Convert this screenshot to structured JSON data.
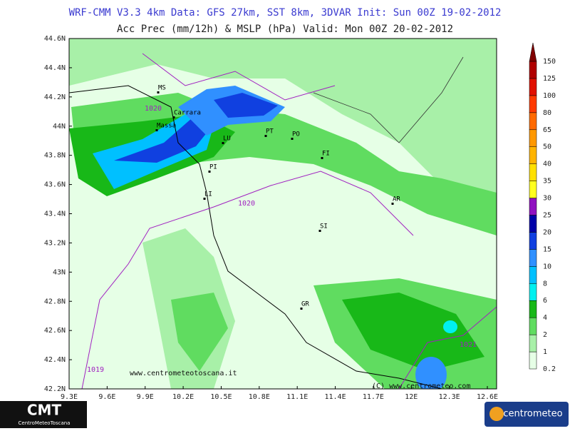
{
  "header": {
    "line1": "WRF-CMM V3.3 4km  Data: GFS 27km, SST 8km, 3DVAR  Init: Sun 00Z 19-02-2012",
    "line2": "Acc Prec (mm/12h) & MSLP (hPa)  Valid: Mon 00Z 20-02-2012"
  },
  "map": {
    "lat_ticks": [
      "44.6N",
      "44.4N",
      "44.2N",
      "44N",
      "43.8N",
      "43.6N",
      "43.4N",
      "43.2N",
      "43N",
      "42.8N",
      "42.6N",
      "42.4N",
      "42.2N"
    ],
    "lon_ticks": [
      "9.3E",
      "9.6E",
      "9.9E",
      "10.2E",
      "10.5E",
      "10.8E",
      "11.1E",
      "11.4E",
      "11.7E",
      "12E",
      "12.3E",
      "12.6E"
    ],
    "cities": [
      "MS",
      "Carrara",
      "Massa",
      "LU",
      "PI",
      "PT",
      "PO",
      "FI",
      "AR",
      "LI",
      "SI",
      "GR"
    ],
    "isobar_labels": [
      "1020",
      "1020",
      "1021",
      "1019"
    ],
    "watermarks": [
      "www.centrometeotoscana.it",
      "(C) www.centrometeo.com"
    ]
  },
  "colorbar": {
    "levels": [
      0.2,
      1,
      2,
      4,
      6,
      8,
      10,
      15,
      20,
      25,
      30,
      35,
      40,
      50,
      65,
      80,
      100,
      125,
      150
    ],
    "colors": [
      "#e6ffe6",
      "#a8f0a8",
      "#60dc60",
      "#18b818",
      "#00f0f0",
      "#00c0ff",
      "#3090ff",
      "#1040e0",
      "#0000a8",
      "#9010c0",
      "#ffff20",
      "#ffe000",
      "#ffb400",
      "#ff9800",
      "#ff6a00",
      "#ff3a00",
      "#e01000",
      "#b00000",
      "#800000"
    ]
  },
  "logos": {
    "left_main": "CMT",
    "left_sub": "CentroMeteoToscana",
    "right": "centrometeo"
  }
}
